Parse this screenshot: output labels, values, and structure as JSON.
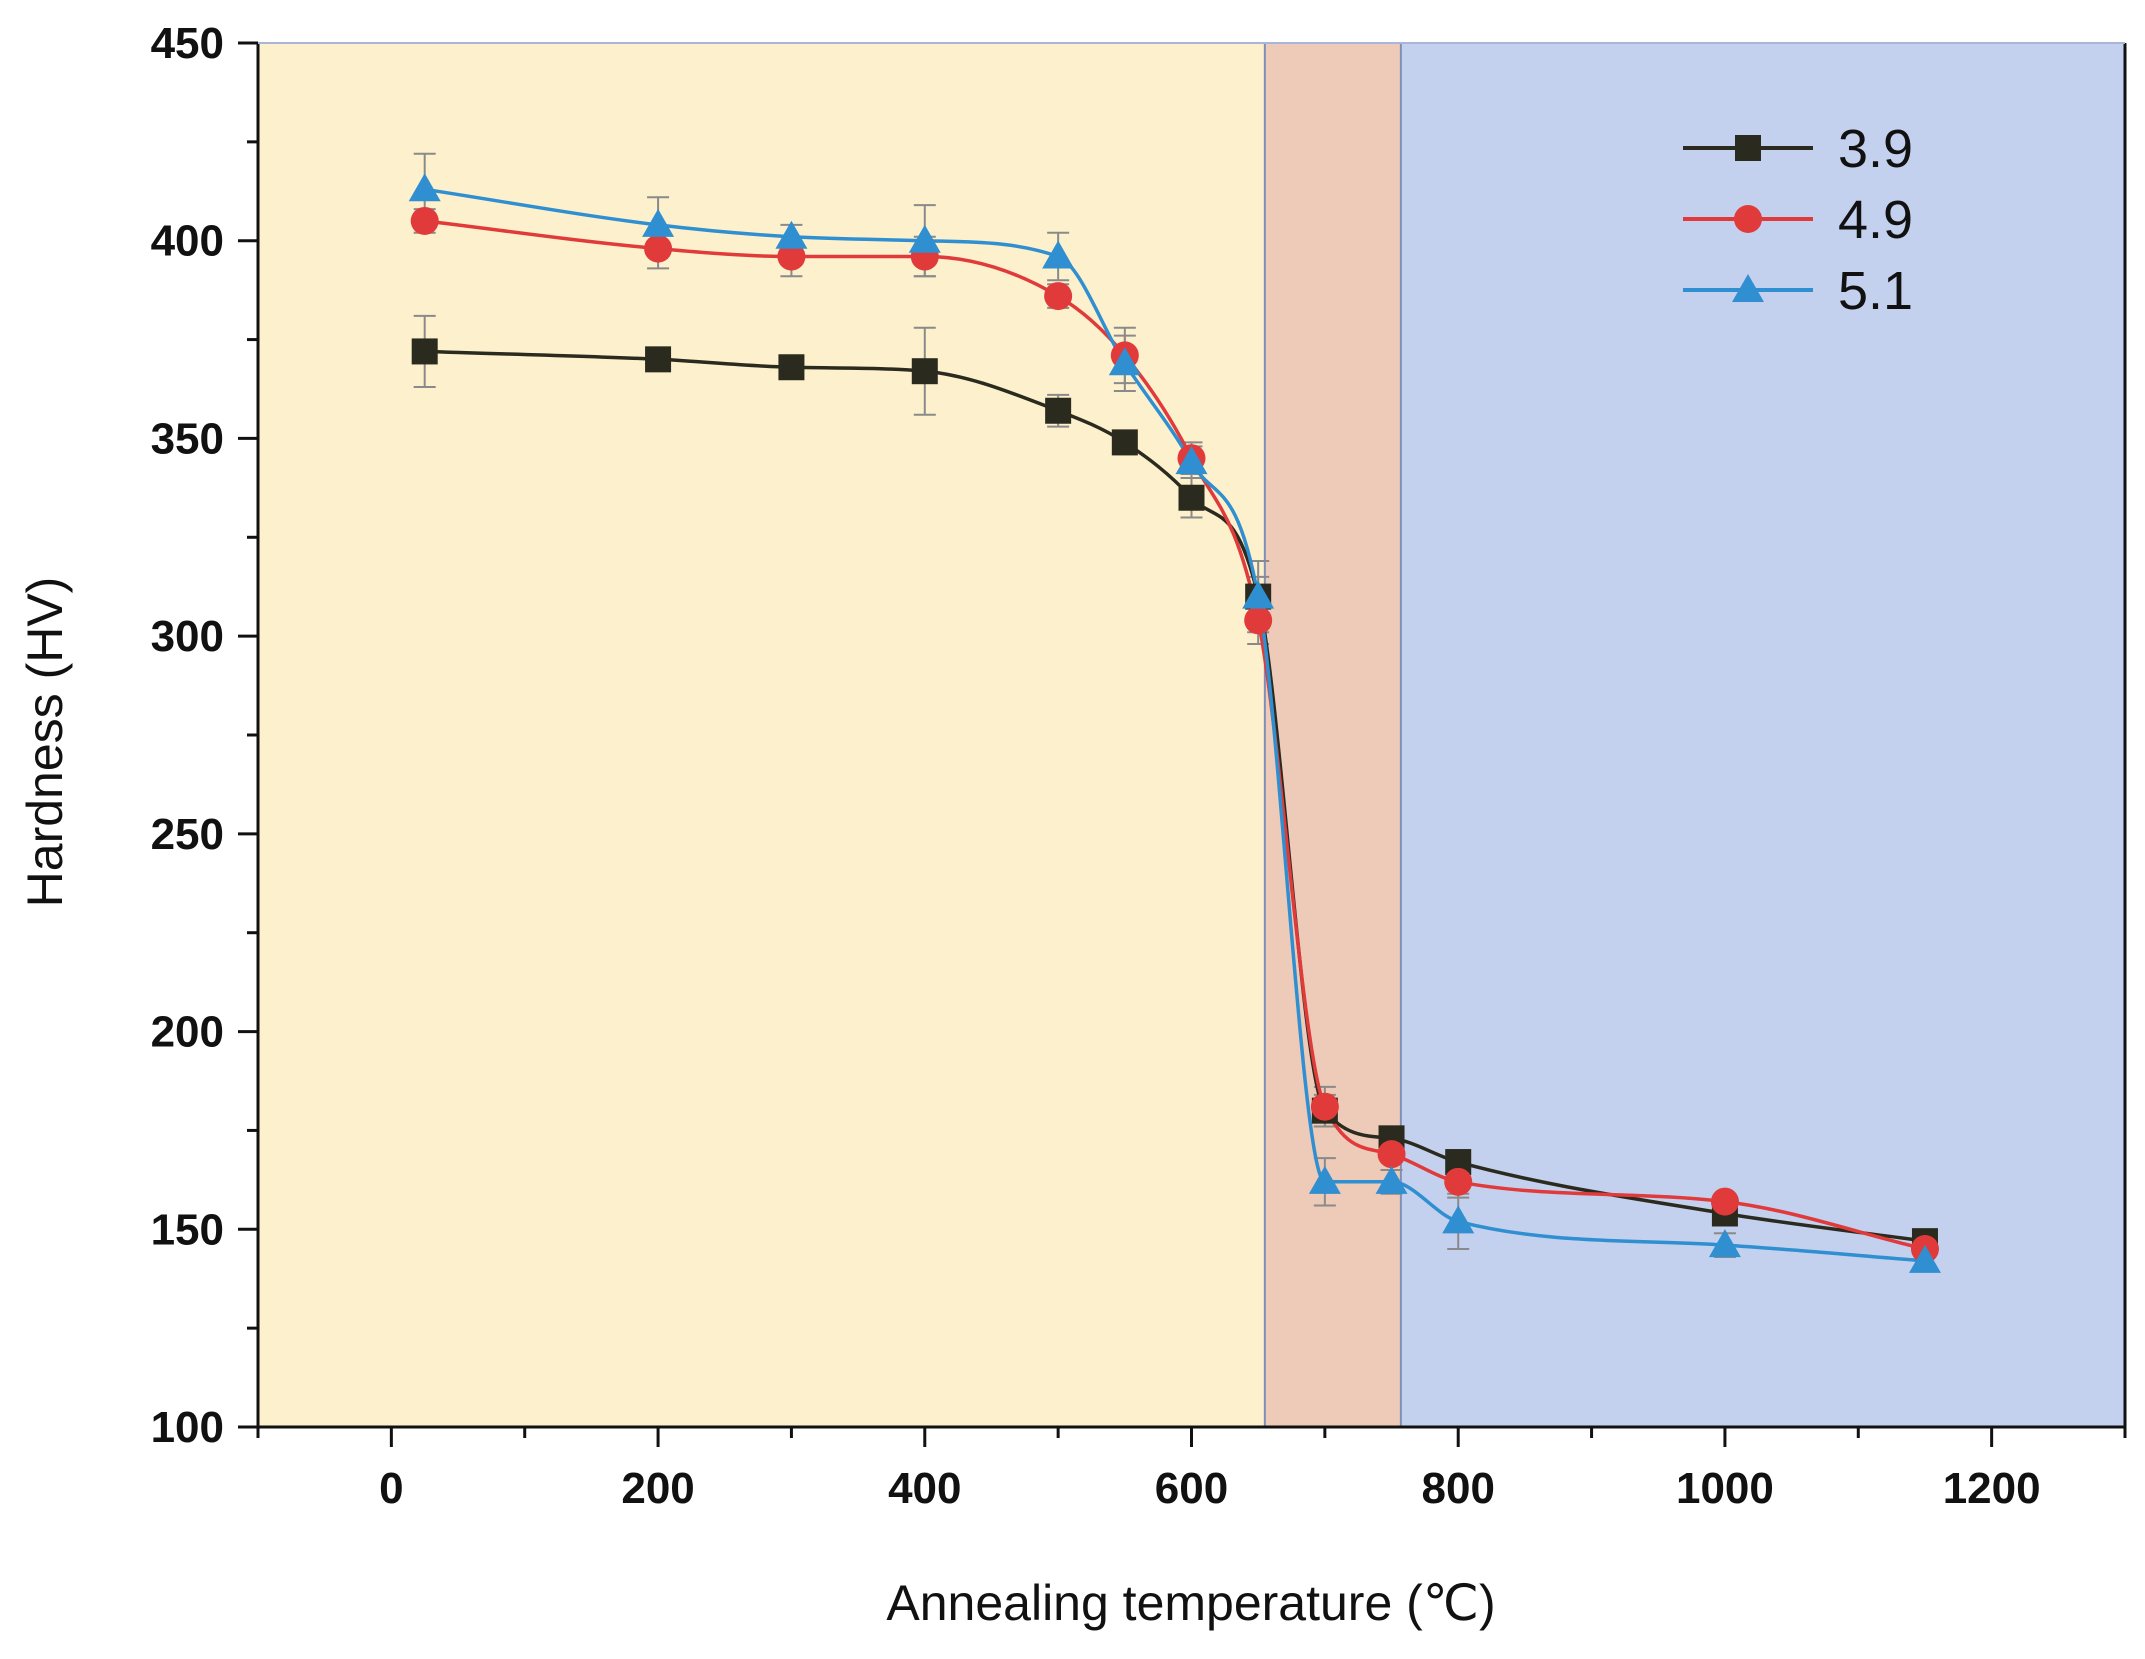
{
  "chart_data": {
    "type": "line",
    "xlabel": "Annealing temperature (℃)",
    "ylabel": "Hardness (HV)",
    "xlim": [
      -100,
      1300
    ],
    "ylim": [
      100,
      450
    ],
    "x_ticks": [
      0,
      200,
      400,
      600,
      800,
      1000,
      1200
    ],
    "y_ticks": [
      100,
      150,
      200,
      250,
      300,
      350,
      400,
      450
    ],
    "grid": false,
    "legend_position": "top-right",
    "regions": [
      {
        "x_start": -100,
        "x_end": 655,
        "color": "#fdf0cc"
      },
      {
        "x_start": 655,
        "x_end": 757,
        "color": "#eecbb8"
      },
      {
        "x_start": 757,
        "x_end": 1300,
        "color": "#c3d0ee"
      }
    ],
    "series": [
      {
        "name": "3.9",
        "marker": "square",
        "color": "#2a2a1e",
        "x": [
          25,
          200,
          300,
          400,
          500,
          550,
          600,
          650,
          700,
          750,
          800,
          1000,
          1150
        ],
        "y": [
          372,
          370,
          368,
          367,
          357,
          349,
          335,
          310,
          180,
          173,
          167,
          154,
          147
        ],
        "error": [
          9,
          2,
          2,
          11,
          4,
          3,
          5,
          5,
          4,
          3,
          3,
          3,
          2
        ]
      },
      {
        "name": "4.9",
        "marker": "circle",
        "color": "#e03a3a",
        "x": [
          25,
          200,
          300,
          400,
          500,
          550,
          600,
          650,
          700,
          750,
          800,
          1000,
          1150
        ],
        "y": [
          405,
          398,
          396,
          396,
          386,
          371,
          345,
          304,
          181,
          169,
          162,
          157,
          145
        ],
        "error": [
          3,
          5,
          5,
          5,
          3,
          7,
          4,
          6,
          5,
          4,
          4,
          2,
          2
        ]
      },
      {
        "name": "5.1",
        "marker": "triangle",
        "color": "#2f8fd0",
        "x": [
          25,
          200,
          300,
          400,
          500,
          550,
          600,
          650,
          700,
          750,
          800,
          1000,
          1150
        ],
        "y": [
          413,
          404,
          401,
          400,
          396,
          369,
          344,
          310,
          162,
          162,
          152,
          146,
          142
        ],
        "error": [
          9,
          7,
          3,
          9,
          6,
          7,
          4,
          9,
          6,
          3,
          7,
          3,
          2
        ]
      }
    ]
  }
}
